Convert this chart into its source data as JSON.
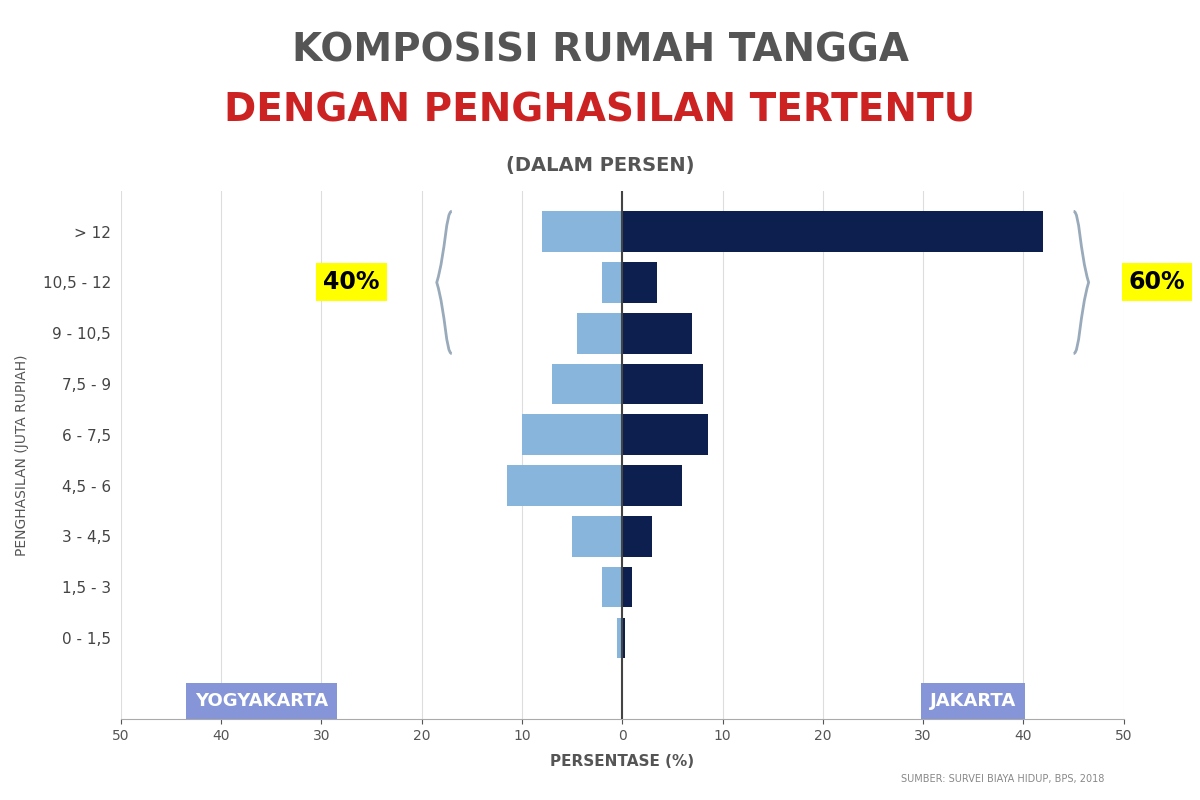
{
  "categories": [
    "0 - 1,5",
    "1,5 - 3",
    "3 - 4,5",
    "4,5 - 6",
    "6 - 7,5",
    "7,5 - 9",
    "9 - 10,5",
    "10,5 - 12",
    "> 12"
  ],
  "yogyakarta": [
    0.5,
    2.0,
    5.0,
    11.5,
    10.0,
    7.0,
    4.5,
    2.0,
    8.0
  ],
  "jakarta": [
    0.3,
    1.0,
    3.0,
    6.0,
    8.5,
    8.0,
    7.0,
    3.5,
    42.0
  ],
  "yogyakarta_color": "#87b5dc",
  "jakarta_color": "#0d1f4e",
  "yogyakarta_label_color": "#8595d8",
  "jakarta_label_color": "#8595d8",
  "title_line1": "KOMPOSISI RUMAH TANGGA",
  "title_line2": "DENGAN PENGHASILAN TERTENTU",
  "title_line3": "(DALAM PERSEN)",
  "title_color1": "#555555",
  "title_color2": "#cc2222",
  "title_color3": "#555555",
  "xlabel": "PERSENTASE (%)",
  "ylabel": "PENGHASILAN (JUTA RUPIAH)",
  "source_text": "SUMBER: SURVEI BIAYA HIDUP, BPS, 2018",
  "xlim": 50,
  "pct_40": "40%",
  "pct_60": "60%",
  "bg_color": "#ffffff",
  "grid_color": "#dddddd",
  "brace_color": "#99aabb"
}
